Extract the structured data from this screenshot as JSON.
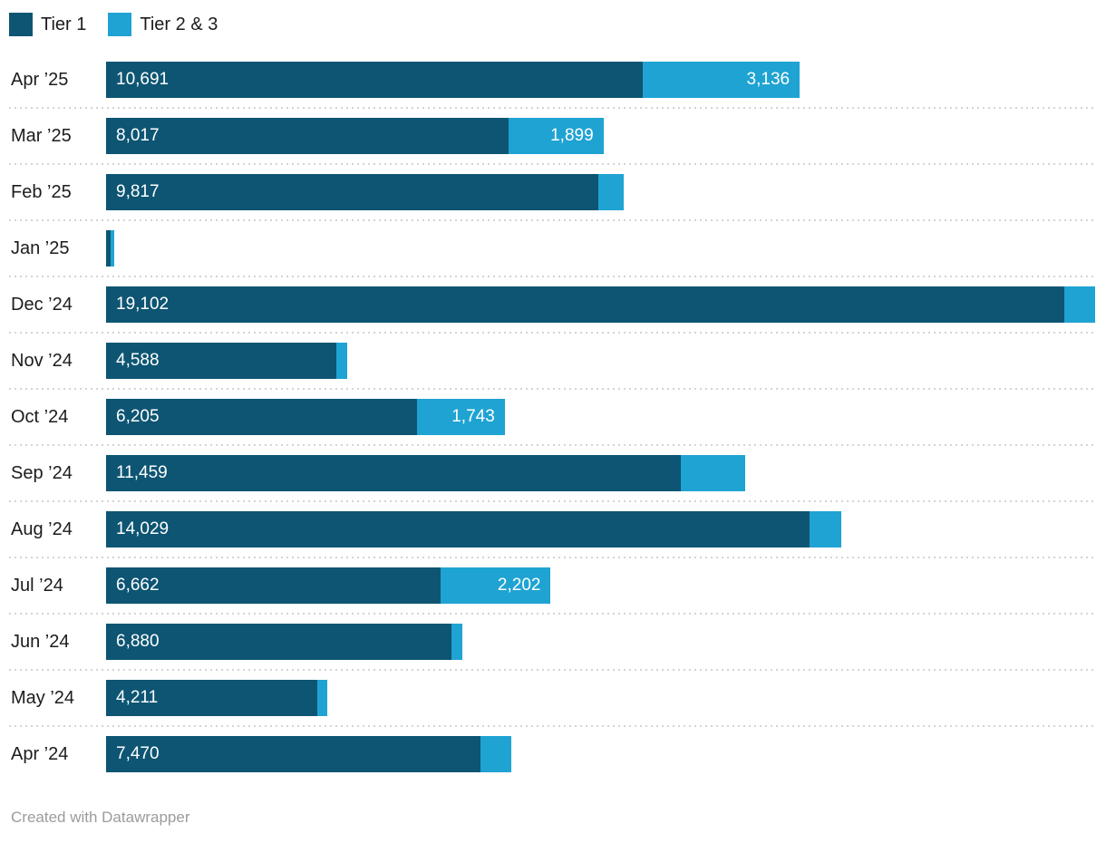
{
  "legend": {
    "items": [
      {
        "label": "Tier 1",
        "color": "#0d5573"
      },
      {
        "label": "Tier 2 & 3",
        "color": "#1fa3d3"
      }
    ]
  },
  "chart_data": {
    "type": "bar",
    "orientation": "horizontal",
    "stacked": true,
    "grid": "off",
    "legend_position": "top",
    "xmax": 19717,
    "categories": [
      "Apr ’25",
      "Mar ’25",
      "Feb ’25",
      "Jan ’25",
      "Dec ’24",
      "Nov ’24",
      "Oct ’24",
      "Sep ’24",
      "Aug ’24",
      "Jul ’24",
      "Jun ’24",
      "May ’24",
      "Apr ’24"
    ],
    "series": [
      {
        "name": "Tier 1",
        "color": "#0d5573",
        "values": [
          10691,
          8017,
          9817,
          95,
          19102,
          4588,
          6205,
          11459,
          14029,
          6662,
          6880,
          4211,
          7470
        ],
        "labels": [
          "10,691",
          "8,017",
          "9,817",
          "",
          "19,102",
          "4,588",
          "6,205",
          "11,459",
          "14,029",
          "6,662",
          "6,880",
          "4,211",
          "7,470"
        ]
      },
      {
        "name": "Tier 2 & 3",
        "color": "#1fa3d3",
        "values": [
          3136,
          1899,
          505,
          65,
          615,
          215,
          1743,
          1285,
          630,
          2202,
          230,
          190,
          615
        ],
        "labels": [
          "3,136",
          "1,899",
          "",
          "",
          "",
          "",
          "1,743",
          "",
          "",
          "2,202",
          "",
          "",
          ""
        ]
      }
    ]
  },
  "footer": {
    "credit": "Created with Datawrapper"
  }
}
